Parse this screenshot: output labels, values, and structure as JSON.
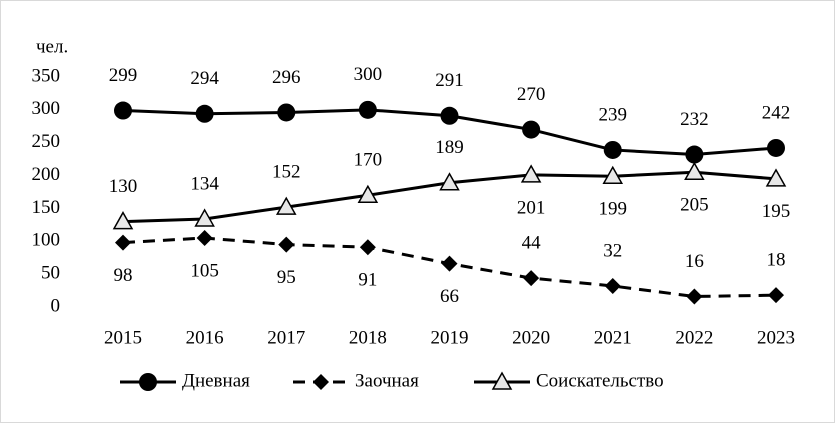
{
  "chart_data": {
    "type": "line",
    "y_axis_label": "чел.",
    "categories": [
      "2015",
      "2016",
      "2017",
      "2018",
      "2019",
      "2020",
      "2021",
      "2022",
      "2023"
    ],
    "ylim": [
      0,
      350
    ],
    "yticks": [
      0,
      50,
      100,
      150,
      200,
      250,
      300,
      350
    ],
    "grid": false,
    "legend": "bottom",
    "series": [
      {
        "name": "Дневная",
        "color": "#000000",
        "marker": "circle",
        "dash": false,
        "values": [
          299,
          294,
          296,
          300,
          291,
          270,
          239,
          232,
          242
        ]
      },
      {
        "name": "Заочная",
        "color": "#000000",
        "marker": "diamond",
        "dash": true,
        "values": [
          98,
          105,
          95,
          91,
          66,
          44,
          32,
          16,
          18
        ]
      },
      {
        "name": "Соискательство",
        "color": "#000000",
        "marker": "triangle",
        "dash": false,
        "values": [
          130,
          134,
          152,
          170,
          189,
          201,
          199,
          205,
          195
        ]
      }
    ]
  }
}
